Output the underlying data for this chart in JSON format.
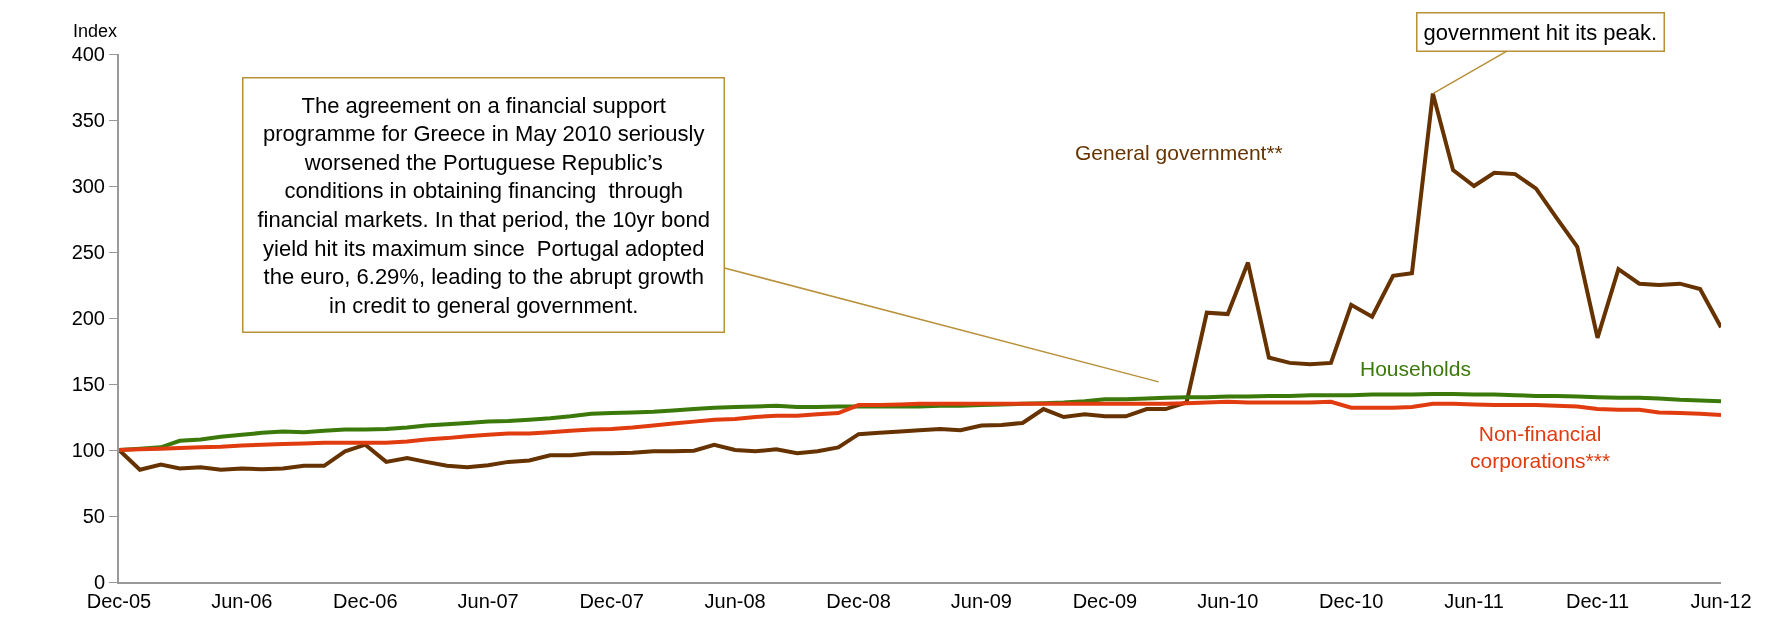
{
  "chart_data": {
    "type": "line",
    "ylabel": "Index",
    "x": [
      "2005-12",
      "2006-01",
      "2006-02",
      "2006-03",
      "2006-04",
      "2006-05",
      "2006-06",
      "2006-07",
      "2006-08",
      "2006-09",
      "2006-10",
      "2006-11",
      "2006-12",
      "2007-01",
      "2007-02",
      "2007-03",
      "2007-04",
      "2007-05",
      "2007-06",
      "2007-07",
      "2007-08",
      "2007-09",
      "2007-10",
      "2007-11",
      "2007-12",
      "2008-01",
      "2008-02",
      "2008-03",
      "2008-04",
      "2008-05",
      "2008-06",
      "2008-07",
      "2008-08",
      "2008-09",
      "2008-10",
      "2008-11",
      "2008-12",
      "2009-01",
      "2009-02",
      "2009-03",
      "2009-04",
      "2009-05",
      "2009-06",
      "2009-07",
      "2009-08",
      "2009-09",
      "2009-10",
      "2009-11",
      "2009-12",
      "2010-01",
      "2010-02",
      "2010-03",
      "2010-04",
      "2010-05",
      "2010-06",
      "2010-07",
      "2010-08",
      "2010-09",
      "2010-10",
      "2010-11",
      "2010-12",
      "2011-01",
      "2011-02",
      "2011-03",
      "2011-04",
      "2011-05",
      "2011-06",
      "2011-07",
      "2011-08",
      "2011-09",
      "2011-10",
      "2011-11",
      "2011-12",
      "2012-01",
      "2012-02",
      "2012-03",
      "2012-04",
      "2012-05",
      "2012-06"
    ],
    "series": [
      {
        "name": "General government**",
        "color": "#663300",
        "values": [
          100,
          85,
          89,
          86,
          87,
          85,
          86,
          85.5,
          86,
          88,
          88,
          99,
          104,
          91,
          94,
          91,
          88,
          87,
          88.5,
          91,
          92,
          96,
          96,
          97.5,
          97.5,
          98,
          99,
          99,
          99.5,
          104,
          100,
          99,
          100.5,
          97.5,
          99,
          102,
          112,
          113,
          114,
          115,
          116,
          115,
          118.5,
          119,
          120.5,
          131,
          125,
          127,
          125.5,
          125.5,
          131,
          131,
          136,
          204,
          203,
          242,
          170,
          166,
          165,
          166,
          210,
          201,
          232,
          234,
          370,
          312,
          300,
          310,
          309,
          298,
          276,
          254,
          185,
          237,
          226,
          225,
          226,
          222,
          193
        ]
      },
      {
        "name": "Households",
        "color": "#3b7a0a",
        "values": [
          100,
          101,
          102,
          107,
          108,
          110,
          111.5,
          113,
          114,
          113.5,
          114.5,
          115.5,
          115.5,
          116,
          117,
          118.5,
          119.5,
          120.5,
          121.5,
          122,
          123,
          124,
          125.5,
          127.5,
          128,
          128.5,
          129,
          130,
          131,
          132,
          132.5,
          133,
          133.5,
          132.5,
          132.5,
          133,
          133,
          133,
          133,
          133,
          133.5,
          133.5,
          134,
          134.5,
          135,
          135.5,
          136,
          137,
          138.5,
          138.5,
          139,
          139.5,
          140,
          140,
          140.5,
          140.5,
          141,
          141,
          141.5,
          141.5,
          141.5,
          142,
          142,
          142,
          142.5,
          142.5,
          142,
          142,
          141.5,
          141,
          141,
          140.5,
          140,
          139.5,
          139.5,
          139,
          138,
          137.5,
          137
        ]
      },
      {
        "name": "Non-financial corporations***",
        "color": "#e03c10",
        "values": [
          100,
          100.5,
          101,
          101.5,
          102,
          102.5,
          103.5,
          104,
          104.5,
          105,
          105.5,
          105.5,
          105.5,
          105.5,
          106.5,
          108,
          109,
          110.5,
          111.5,
          112.5,
          112.5,
          113.5,
          114.5,
          115.5,
          116,
          117,
          118.5,
          120,
          121.5,
          123,
          123.5,
          125,
          126,
          126,
          127,
          128,
          134,
          134,
          134.5,
          135,
          135,
          135,
          135,
          135,
          135,
          135,
          135,
          135,
          135,
          135,
          135,
          135,
          135.5,
          136,
          136.5,
          136,
          136,
          136,
          136,
          136.5,
          132,
          132,
          132,
          132.5,
          135,
          135,
          134.5,
          134,
          134,
          134,
          133.5,
          133,
          131,
          130.5,
          130.5,
          128.5,
          128,
          127.5,
          126.5
        ]
      }
    ],
    "ylim": [
      0,
      400
    ],
    "yticks": [
      0,
      50,
      100,
      150,
      200,
      250,
      300,
      350,
      400
    ],
    "xlim": [
      "2005-12",
      "2012-06"
    ],
    "xticks": [
      {
        "value": "2005-12",
        "label": "Dec-05"
      },
      {
        "value": "2006-06",
        "label": "Jun-06"
      },
      {
        "value": "2006-12",
        "label": "Dec-06"
      },
      {
        "value": "2007-06",
        "label": "Jun-07"
      },
      {
        "value": "2007-12",
        "label": "Dec-07"
      },
      {
        "value": "2008-06",
        "label": "Jun-08"
      },
      {
        "value": "2008-12",
        "label": "Dec-08"
      },
      {
        "value": "2009-06",
        "label": "Jun-09"
      },
      {
        "value": "2009-12",
        "label": "Dec-09"
      },
      {
        "value": "2010-06",
        "label": "Jun-10"
      },
      {
        "value": "2010-12",
        "label": "Dec-10"
      },
      {
        "value": "2011-06",
        "label": "Jun-11"
      },
      {
        "value": "2011-12",
        "label": "Dec-11"
      },
      {
        "value": "2012-06",
        "label": "Jun-12"
      }
    ],
    "annotations": [
      "The agreement on a financial support\nprogramme for Greece in May 2010 seriously\nworsened the Portuguese Republic’s\nconditions in obtaining financing  through\nfinancial markets. In that period, the 10yr bond\nyield hit its maximum since  Portugal adopted\nthe euro, 6.29%, leading to the abrupt growth\nin credit to general government.",
      {
        "text": "government hit its peak.",
        "x": "2011-04",
        "y": 370
      }
    ],
    "grid": false,
    "legend": false,
    "marker": "none",
    "line_style": "solid"
  }
}
